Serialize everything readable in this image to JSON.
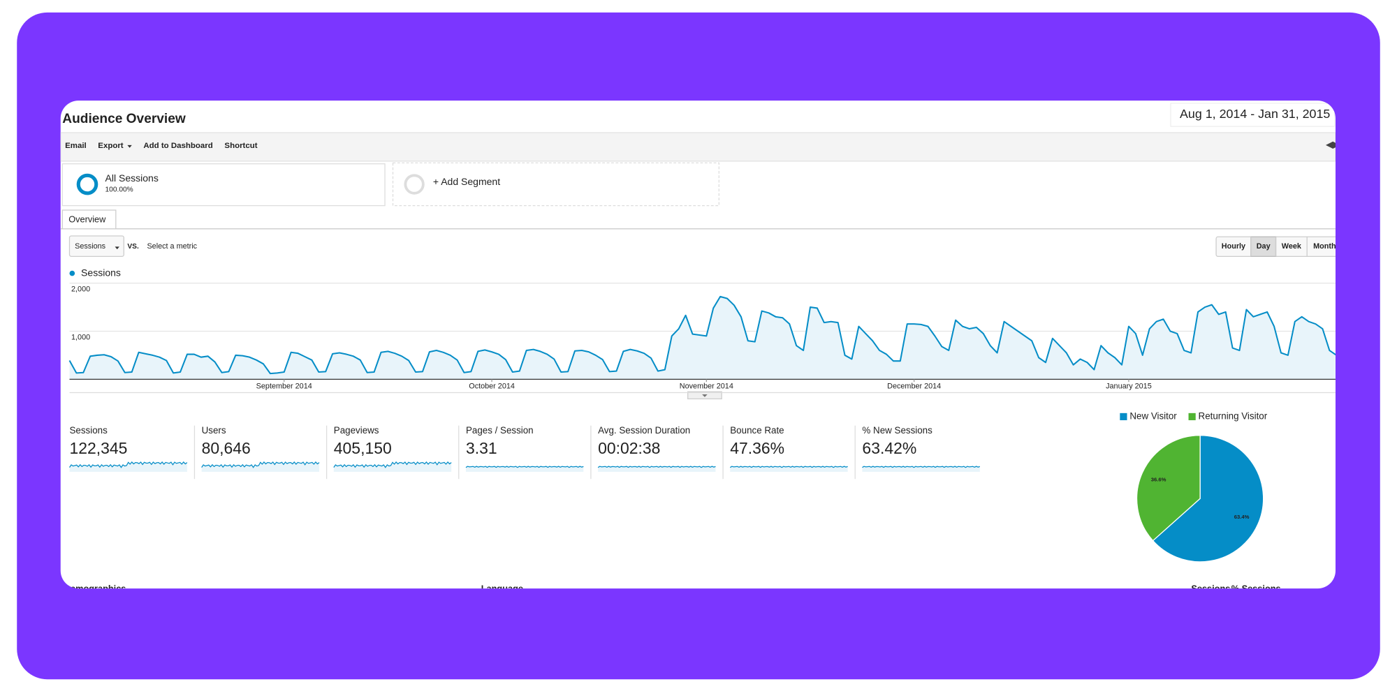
{
  "header": {
    "title": "Audience Overview",
    "date_range": "Aug 1, 2014 - Jan 31, 2015"
  },
  "toolbar": [
    "Email",
    "Export",
    "Add to Dashboard",
    "Shortcut"
  ],
  "segments": {
    "name": "All Sessions",
    "percent": "100.00%",
    "add": "+ Add Segment"
  },
  "tab": "Overview",
  "metric_picker": {
    "metric": "Sessions",
    "vs": "VS.",
    "select": "Select a metric"
  },
  "intervals": [
    "Hourly",
    "Day",
    "Week",
    "Month"
  ],
  "chart_data": [
    {
      "type": "line",
      "series": [
        {
          "name": "Sessions",
          "color": "#058dc7",
          "values": [
            390,
            130,
            140,
            480,
            500,
            510,
            470,
            380,
            140,
            150,
            560,
            530,
            500,
            460,
            390,
            130,
            150,
            520,
            520,
            460,
            480,
            360,
            140,
            160,
            500,
            490,
            460,
            400,
            320,
            120,
            130,
            150,
            560,
            540,
            470,
            400,
            150,
            160,
            530,
            550,
            520,
            480,
            400,
            140,
            150,
            560,
            580,
            540,
            480,
            390,
            150,
            160,
            570,
            600,
            560,
            500,
            400,
            140,
            160,
            580,
            610,
            570,
            520,
            410,
            150,
            170,
            600,
            620,
            580,
            520,
            420,
            150,
            160,
            590,
            600,
            570,
            500,
            410,
            160,
            170,
            580,
            620,
            590,
            540,
            440,
            170,
            200,
            900,
            1050,
            1330,
            940,
            920,
            900,
            1480,
            1720,
            1680,
            1540,
            1300,
            800,
            780,
            1420,
            1380,
            1300,
            1280,
            1150,
            700,
            600,
            1500,
            1480,
            1180,
            1200,
            1180,
            500,
            420,
            1100,
            950,
            800,
            600,
            520,
            380,
            380,
            1150,
            1150,
            1140,
            1100,
            900,
            680,
            600,
            1230,
            1100,
            1050,
            1080,
            950,
            700,
            550,
            1200,
            1100,
            1000,
            900,
            800,
            450,
            350,
            850,
            700,
            550,
            300,
            420,
            350,
            200,
            700,
            550,
            450,
            300,
            1100,
            950,
            500,
            1050,
            1200,
            1250,
            1000,
            950,
            600,
            550,
            1400,
            1500,
            1550,
            1350,
            1400,
            650,
            600,
            1450,
            1300,
            1350,
            1400,
            1100,
            550,
            500,
            1200,
            1300,
            1200,
            1150,
            1050,
            600,
            500
          ]
        }
      ],
      "xlim": [
        0,
        183
      ],
      "xticks": [
        {
          "value": 31,
          "label": "September 2014"
        },
        {
          "value": 61,
          "label": "October 2014"
        },
        {
          "value": 92,
          "label": "November 2014"
        },
        {
          "value": 122,
          "label": "December 2014"
        },
        {
          "value": 153,
          "label": "January 2015"
        }
      ],
      "ylim": [
        0,
        2000
      ],
      "yticks": [
        {
          "value": 1000,
          "label": "1,000"
        },
        {
          "value": 2000,
          "label": "2,000"
        }
      ],
      "grid": true
    },
    {
      "type": "pie",
      "categories": [
        "New Visitor",
        "Returning Visitor"
      ],
      "values": [
        63.4,
        36.6
      ],
      "value_labels": [
        "63.4%",
        "36.6%"
      ],
      "colors": [
        "#058dc7",
        "#50b432"
      ]
    }
  ],
  "metrics": [
    {
      "label": "Sessions",
      "value": "122,345"
    },
    {
      "label": "Users",
      "value": "80,646"
    },
    {
      "label": "Pageviews",
      "value": "405,150"
    },
    {
      "label": "Pages / Session",
      "value": "3.31"
    },
    {
      "label": "Avg. Session Duration",
      "value": "00:02:38"
    },
    {
      "label": "Bounce Rate",
      "value": "47.36%"
    },
    {
      "label": "% New Sessions",
      "value": "63.42%"
    }
  ],
  "bottom": [
    "Demographics",
    "Language",
    "Sessions",
    "% Sessions"
  ]
}
